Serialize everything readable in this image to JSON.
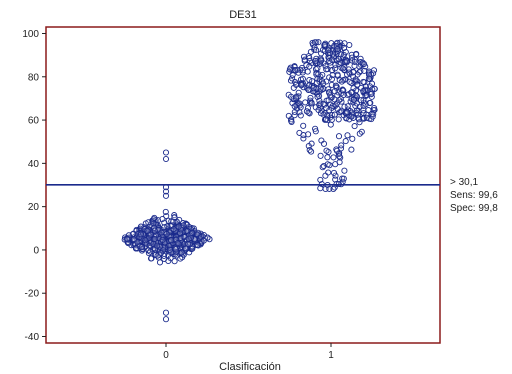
{
  "chart_data": {
    "type": "scatter",
    "subtype": "dot-plot",
    "title": "DE31",
    "xlabel": "Clasificación",
    "ylabel": "",
    "categories": [
      "0",
      "1"
    ],
    "ylim": [
      -43,
      103
    ],
    "yticks": [
      -40,
      -20,
      0,
      20,
      40,
      60,
      80,
      100
    ],
    "grid": false,
    "legend": "none",
    "colors": {
      "frame": "#8b1a1a",
      "points": "#1a2a8c",
      "cutoff_line": "#1a2a8c"
    },
    "series": [
      {
        "category": "0",
        "distribution": "dense cluster centered near 5, spread roughly -12 to 18, with sparse outliers",
        "center": 5,
        "core_range": [
          -12,
          18
        ],
        "outliers": [
          45,
          42,
          29,
          27,
          25,
          -29,
          -32
        ]
      },
      {
        "category": "1",
        "distribution": "broad cluster spanning roughly 28 to 96, densest between 60 and 85",
        "center": 73,
        "core_range": [
          28,
          96
        ],
        "outliers": []
      }
    ],
    "cutoff": {
      "value": 30.1,
      "label": "> 30,1",
      "sens_label": "Sens: 99,6",
      "spec_label": "Spec: 99,8"
    }
  }
}
